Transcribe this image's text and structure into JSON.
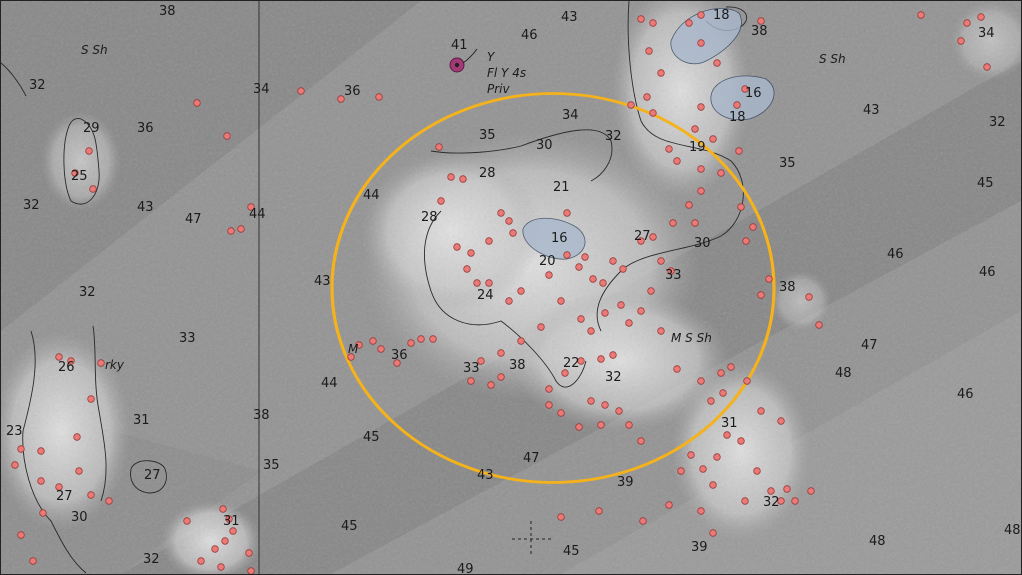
{
  "map": {
    "title": "",
    "colors": {
      "water_dark": "#6e6e6e",
      "water_mid": "#8f8f8f",
      "water_light": "#a9a9a9",
      "reef": "#e0e0e0",
      "shoal_fill": "#a9b8cc",
      "highlight_circle": "#f5b21b",
      "marker_fill": "#e87a78",
      "marker_stroke": "#9c3a38",
      "buoy_fill": "#a33a78",
      "text": "#1b1b1b"
    },
    "soundings": [
      "38",
      "43",
      "46",
      "18",
      "38",
      "34",
      "S Sh",
      "32",
      "41",
      "Y",
      "Fl Y 4s",
      "Priv",
      "34",
      "36",
      "S Sh",
      "16",
      "18",
      "43",
      "32",
      "29",
      "36",
      "35",
      "30",
      "34",
      "32",
      "19",
      "25",
      "28",
      "21",
      "35",
      "45",
      "32",
      "43",
      "47",
      "44",
      "44",
      "28",
      "16",
      "27",
      "30",
      "20",
      "46",
      "46",
      "43",
      "24",
      "33",
      "38",
      "32",
      "33",
      "M",
      "36",
      "rky",
      "26",
      "33",
      "38",
      "22",
      "32",
      "M S Sh",
      "47",
      "48",
      "44",
      "31",
      "46",
      "23",
      "38",
      "45",
      "31",
      "27",
      "35",
      "43",
      "47",
      "39",
      "27",
      "30",
      "31",
      "32",
      "45",
      "49",
      "45",
      "39",
      "48",
      "48",
      "32"
    ],
    "markers": {
      "count_hint": "numerous small red sample markers across reef area",
      "aid_to_navigation": "Y"
    },
    "highlight": {
      "shape": "circle",
      "label": ""
    },
    "crosshair": "+"
  }
}
